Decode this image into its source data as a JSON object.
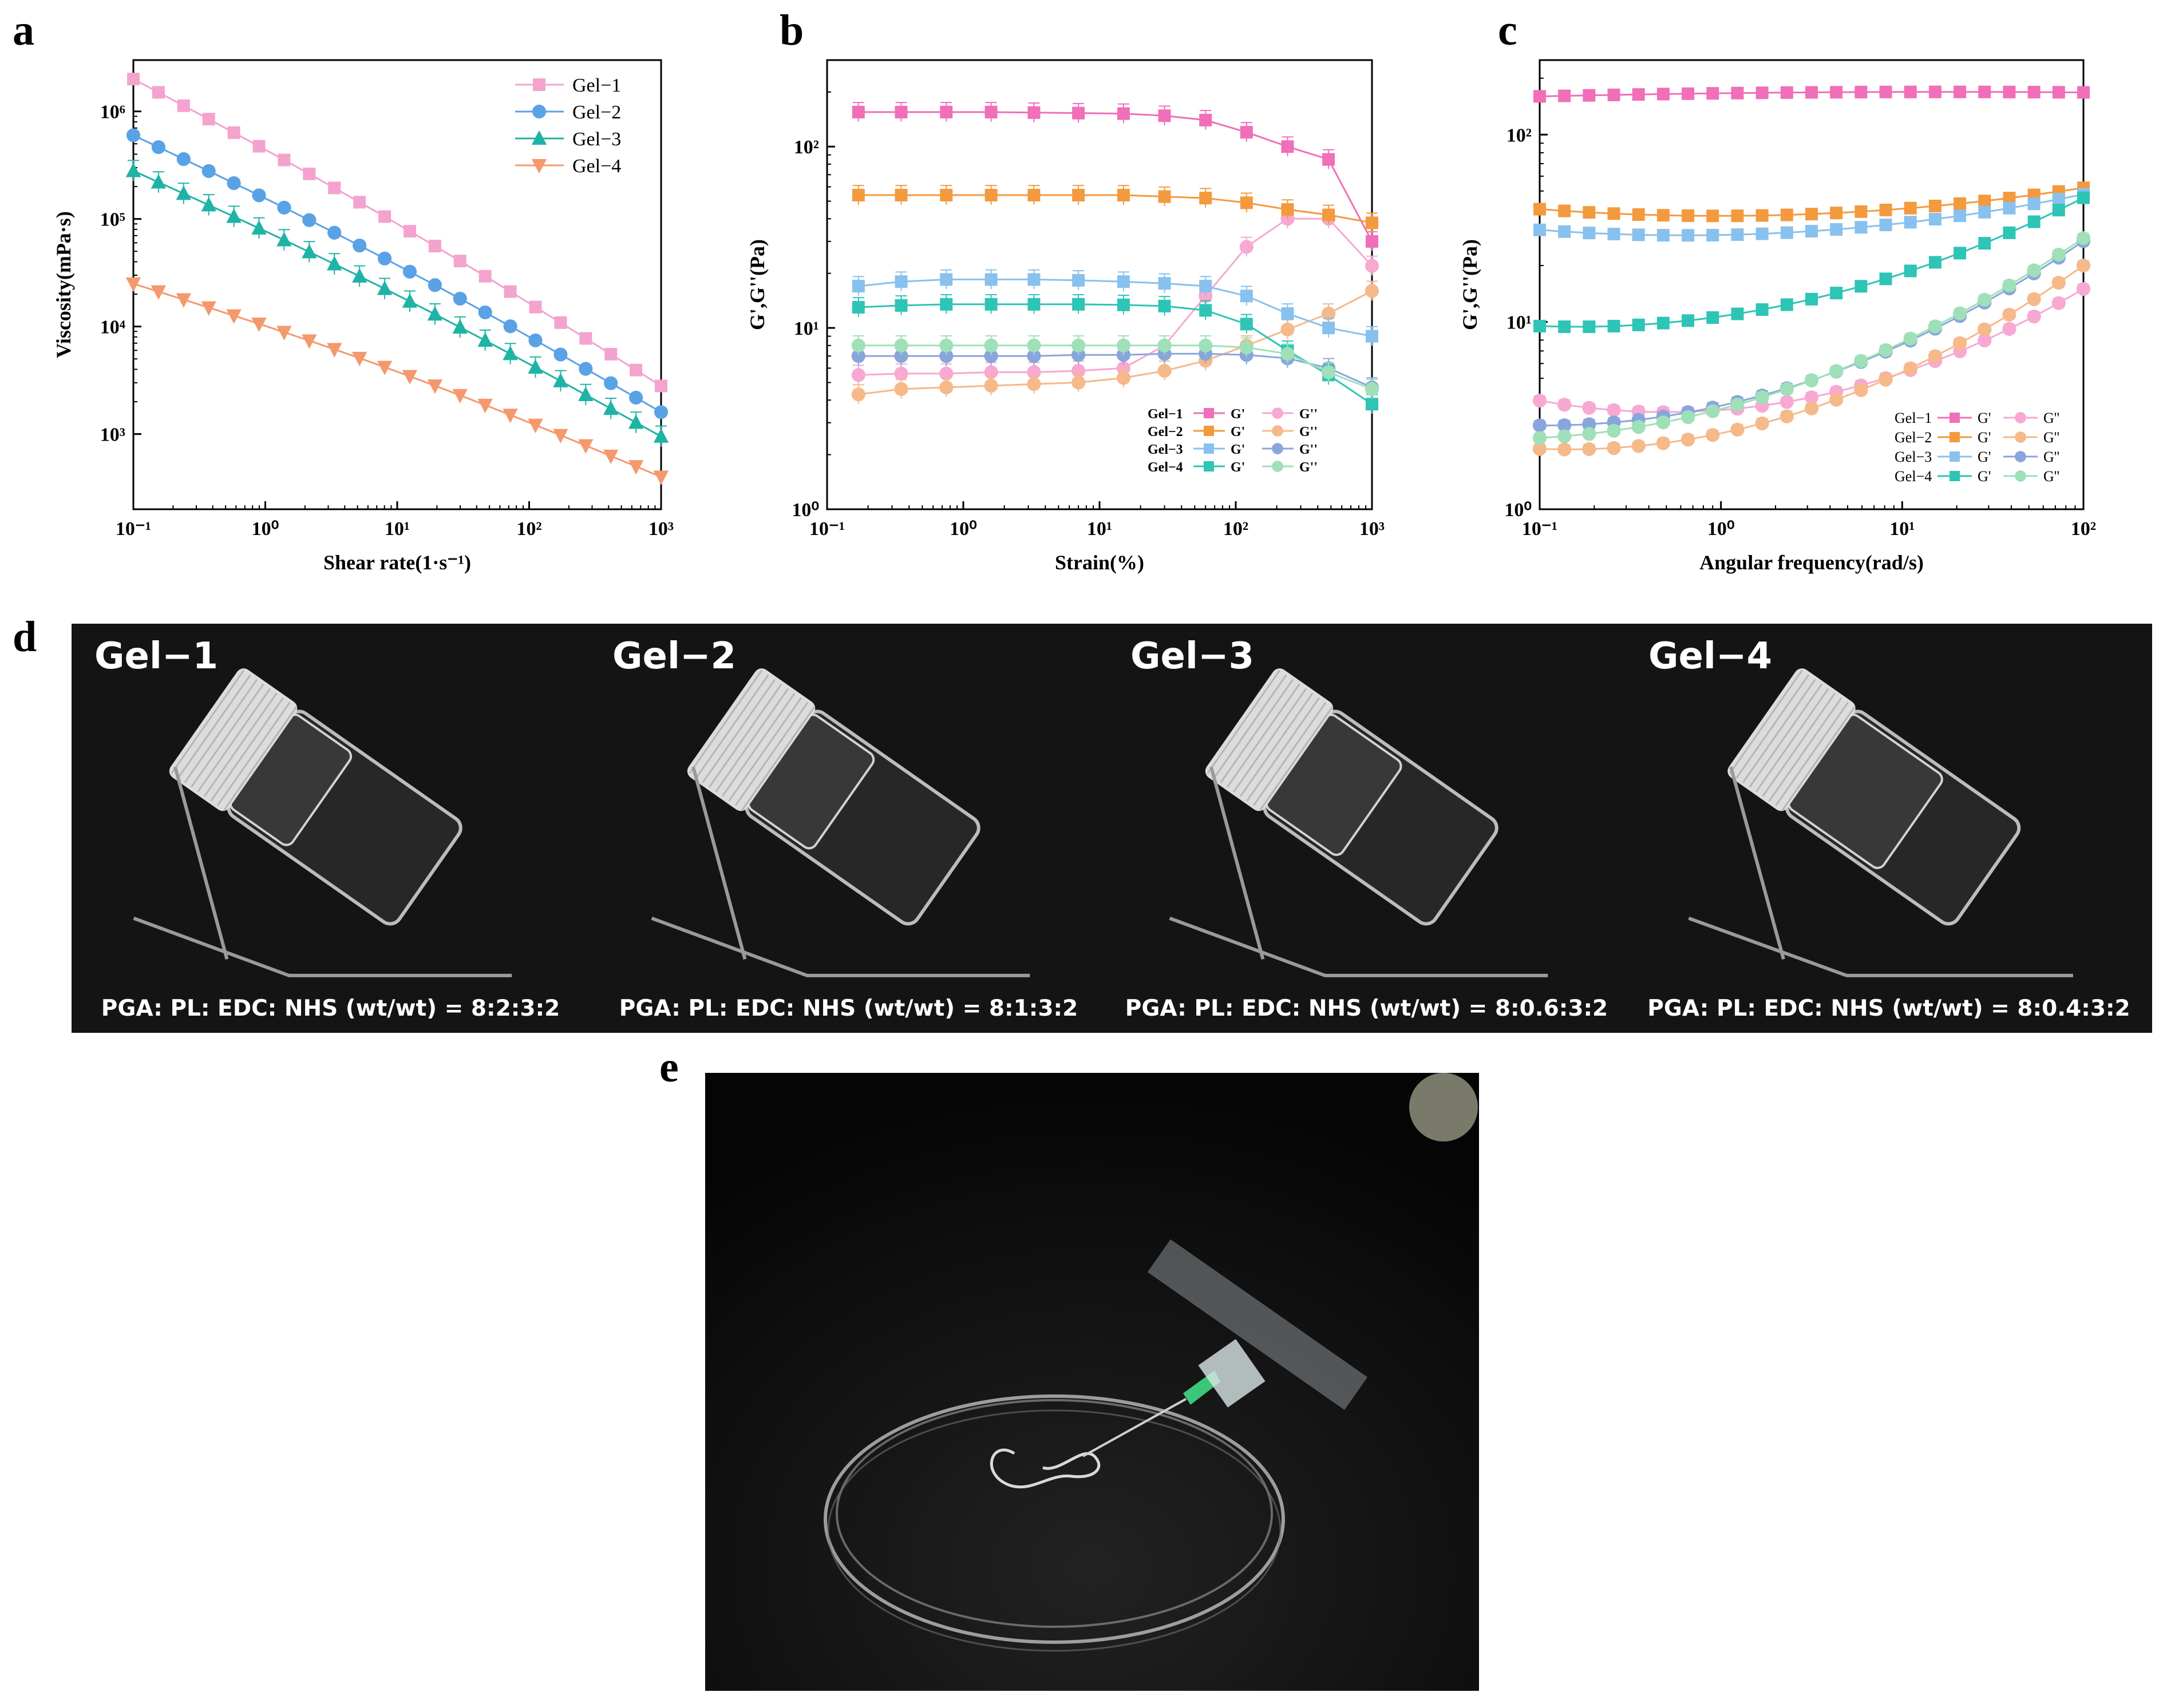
{
  "figure": {
    "panel_labels": [
      "a",
      "b",
      "c",
      "d",
      "e"
    ],
    "photos_d": [
      {
        "title": "Gel−1",
        "caption": "PGA: PL: EDC: NHS (wt/wt) = 8:2:3:2"
      },
      {
        "title": "Gel−2",
        "caption": "PGA: PL: EDC: NHS (wt/wt) = 8:1:3:2"
      },
      {
        "title": "Gel−3",
        "caption": "PGA: PL: EDC: NHS (wt/wt) = 8:0.6:3:2"
      },
      {
        "title": "Gel−4",
        "caption": "PGA: PL: EDC: NHS (wt/wt) = 8:0.4:3:2"
      }
    ]
  },
  "colors": {
    "gel1": "#f06fb8",
    "gel1_light": "#f7a8d3",
    "gel2": "#f39a3e",
    "gel2_light": "#f5b98a",
    "gel3": "#88c1ee",
    "gel3_light": "#88a6dc",
    "gel4": "#2ec4b6",
    "gel4_light": "#9fe0b8",
    "a_gel1": "#f4a3cf",
    "a_gel2": "#5aa2e6",
    "a_gel3": "#1fb3a6",
    "a_gel4": "#f4996d"
  },
  "chart_data": [
    {
      "panel": "a",
      "type": "line",
      "xlabel": "Shear rate(1·s⁻¹)",
      "ylabel": "Viscosity(mPa·s)",
      "xscale": "log",
      "yscale": "log",
      "xlim": [
        0.1,
        1000
      ],
      "ylim": [
        200,
        3000000
      ],
      "xticks": [
        "10⁻¹",
        "10⁰",
        "10¹",
        "10²",
        "10³"
      ],
      "yticks": [
        "10³",
        "10⁴",
        "10⁵",
        "10⁶"
      ],
      "legend": "top-right",
      "series": [
        {
          "name": "Gel−1",
          "marker": "square",
          "start": 2000000,
          "end": 2800
        },
        {
          "name": "Gel−2",
          "marker": "circle",
          "start": 600000,
          "end": 1600
        },
        {
          "name": "Gel−3",
          "marker": "triangle-up",
          "start": 280000,
          "end": 950
        },
        {
          "name": "Gel−4",
          "marker": "triangle-down",
          "start": 25000,
          "end": 400
        }
      ]
    },
    {
      "panel": "b",
      "type": "line",
      "xlabel": "Strain(%)",
      "ylabel": "G',G''(Pa)",
      "xscale": "log",
      "yscale": "log",
      "xlim": [
        0.1,
        1000
      ],
      "ylim": [
        1,
        300
      ],
      "xticks": [
        "10⁻¹",
        "10⁰",
        "10¹",
        "10²",
        "10³"
      ],
      "yticks": [
        "10⁰",
        "10¹",
        "10²"
      ],
      "legend": "bottom-right",
      "x": [
        0.17,
        0.35,
        0.75,
        1.6,
        3.3,
        7,
        15,
        30,
        60,
        120,
        240,
        480,
        1000
      ],
      "series": [
        {
          "name": "Gel−1 G'",
          "marker": "square",
          "values": [
            155,
            155,
            155,
            155,
            154,
            153,
            152,
            148,
            140,
            120,
            100,
            85,
            30
          ]
        },
        {
          "name": "Gel−1 G''",
          "marker": "circle",
          "values": [
            5.5,
            5.6,
            5.6,
            5.7,
            5.7,
            5.8,
            6,
            8,
            15,
            28,
            40,
            40,
            22
          ]
        },
        {
          "name": "Gel−2 G'",
          "marker": "square",
          "values": [
            54,
            54,
            54,
            54,
            54,
            54,
            54,
            53,
            52,
            49,
            45,
            42,
            38
          ]
        },
        {
          "name": "Gel−2 G''",
          "marker": "circle",
          "values": [
            4.3,
            4.6,
            4.7,
            4.8,
            4.9,
            5,
            5.3,
            5.8,
            6.6,
            8,
            9.8,
            12,
            16
          ]
        },
        {
          "name": "Gel−3 G'",
          "marker": "square",
          "values": [
            17,
            18,
            18.5,
            18.5,
            18.5,
            18.3,
            18,
            17.6,
            17,
            15,
            12,
            10,
            9
          ]
        },
        {
          "name": "Gel−3 G''",
          "marker": "circle",
          "values": [
            7,
            7,
            7,
            7,
            7,
            7.1,
            7.1,
            7.2,
            7.2,
            7.1,
            6.8,
            6,
            4.7
          ]
        },
        {
          "name": "Gel−4 G'",
          "marker": "square",
          "values": [
            13,
            13.3,
            13.5,
            13.5,
            13.5,
            13.5,
            13.4,
            13.2,
            12.5,
            10.5,
            7.5,
            5.5,
            3.8
          ]
        },
        {
          "name": "Gel−4 G''",
          "marker": "circle",
          "values": [
            8,
            8,
            8,
            8,
            8,
            8,
            8,
            8,
            8,
            7.8,
            7.2,
            5.7,
            4.6
          ]
        }
      ]
    },
    {
      "panel": "c",
      "type": "line",
      "xlabel": "Angular frequency(rad/s)",
      "ylabel": "G',G''(Pa)",
      "xscale": "log",
      "yscale": "log",
      "xlim": [
        0.1,
        100
      ],
      "ylim": [
        1,
        250
      ],
      "xticks": [
        "10⁻¹",
        "10⁰",
        "10¹",
        "10²"
      ],
      "yticks": [
        "10⁰",
        "10¹",
        "10²"
      ],
      "legend": "bottom-right",
      "x_start": 0.1,
      "x_end": 100,
      "points": 23,
      "series": [
        {
          "name": "Gel−1 G'",
          "marker": "square",
          "start": 160,
          "end": 168,
          "mid": 165
        },
        {
          "name": "Gel−1 G''",
          "marker": "circle",
          "start": 3.8,
          "end": 15,
          "mid": 3.3
        },
        {
          "name": "Gel−2 G'",
          "marker": "square",
          "start": 40,
          "end": 52,
          "mid": 37
        },
        {
          "name": "Gel−2 G''",
          "marker": "circle",
          "start": 2.1,
          "end": 20,
          "mid": 2.3
        },
        {
          "name": "Gel−3 G'",
          "marker": "square",
          "start": 31,
          "end": 48,
          "mid": 29
        },
        {
          "name": "Gel−3 G''",
          "marker": "circle",
          "start": 2.8,
          "end": 27,
          "mid": 3.2
        },
        {
          "name": "Gel−4 G'",
          "marker": "square",
          "start": 9.5,
          "end": 46,
          "mid": 10
        },
        {
          "name": "Gel−4 G''",
          "marker": "circle",
          "start": 2.4,
          "end": 28,
          "mid": 3.0
        }
      ],
      "legend_labels": [
        {
          "gel": "Gel−1",
          "g1": "G'",
          "g2": "G''"
        },
        {
          "gel": "Gel−2",
          "g1": "G'",
          "g2": "G''"
        },
        {
          "gel": "Gel−3",
          "g1": "G'",
          "g2": "G''"
        },
        {
          "gel": "Gel−4",
          "g1": "G'",
          "g2": "G''"
        }
      ]
    }
  ]
}
